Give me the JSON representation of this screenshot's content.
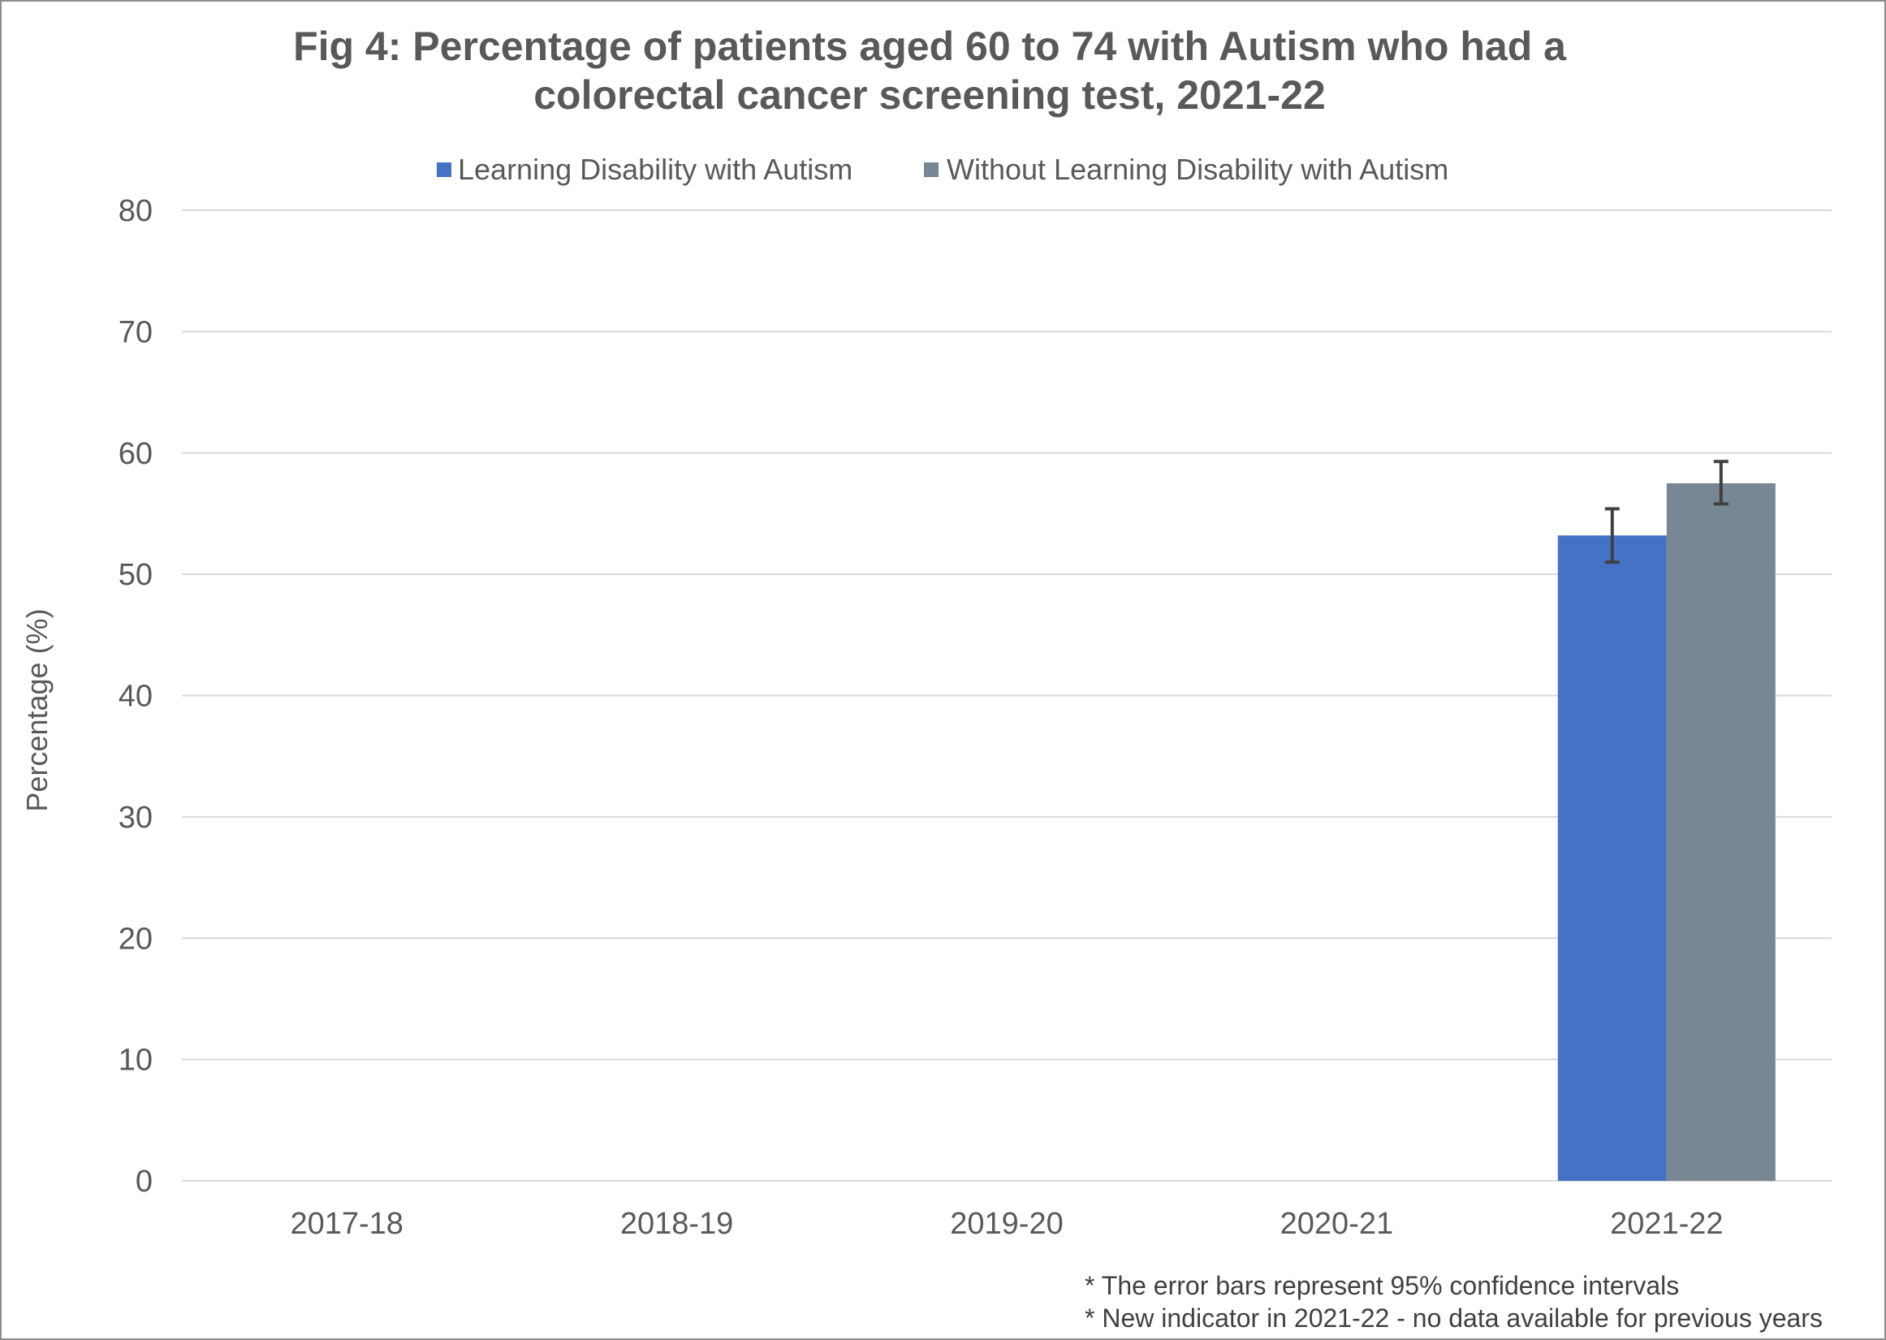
{
  "chart_data": {
    "type": "bar",
    "title_lines": [
      "Fig 4: Percentage of patients aged 60 to 74 with Autism who had a",
      "colorectal cancer screening test, 2021-22"
    ],
    "xlabel": "",
    "ylabel": "Percentage (%)",
    "ylim": [
      0,
      80
    ],
    "yticks": [
      0,
      10,
      20,
      30,
      40,
      50,
      60,
      70,
      80
    ],
    "categories": [
      "2017-18",
      "2018-19",
      "2019-20",
      "2020-21",
      "2021-22"
    ],
    "series": [
      {
        "name": "Learning Disability with Autism",
        "color": "#4472c4",
        "values": [
          null,
          null,
          null,
          null,
          53.2
        ],
        "ci_lower": [
          null,
          null,
          null,
          null,
          51.0
        ],
        "ci_upper": [
          null,
          null,
          null,
          null,
          55.4
        ]
      },
      {
        "name": "Without Learning Disability with Autism",
        "color": "#778793",
        "values": [
          null,
          null,
          null,
          null,
          57.5
        ],
        "ci_lower": [
          null,
          null,
          null,
          null,
          55.8
        ],
        "ci_upper": [
          null,
          null,
          null,
          null,
          59.3
        ]
      }
    ],
    "grid": true,
    "legend_position": "top",
    "footnotes": [
      "* The error bars represent 95% confidence intervals",
      "* New indicator in 2021-22 - no data available for previous years"
    ]
  }
}
